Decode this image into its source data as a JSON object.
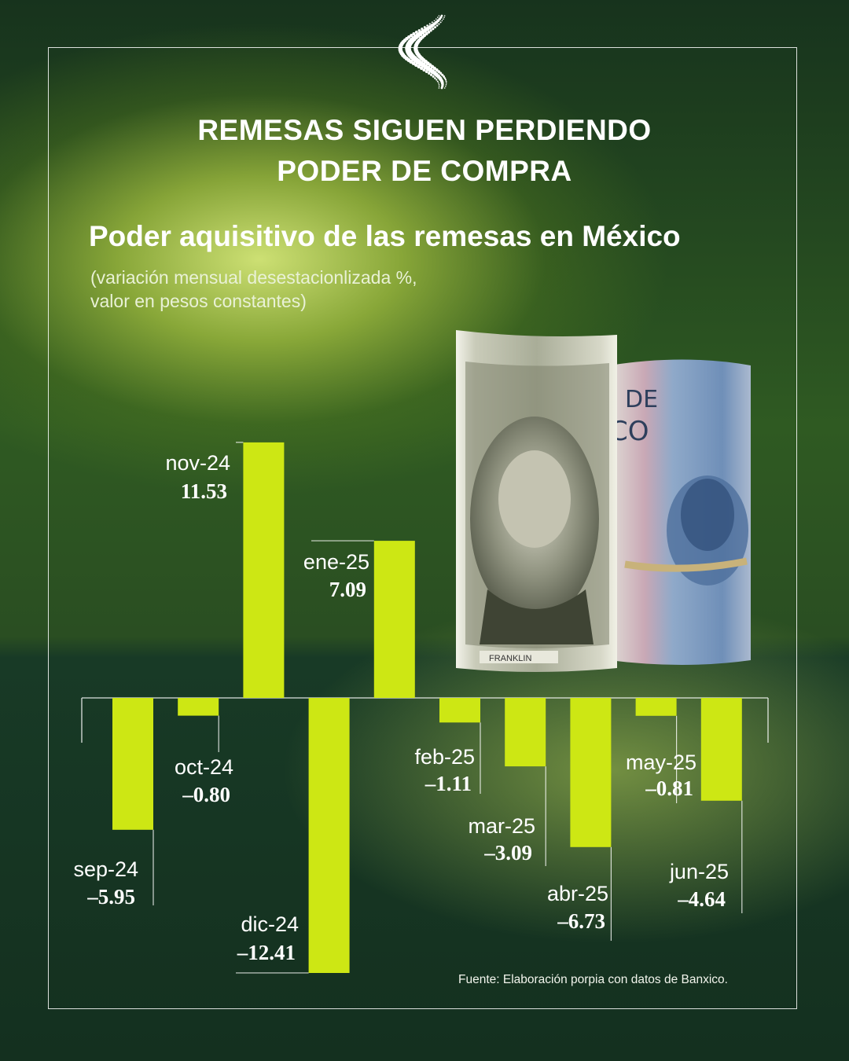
{
  "header": {
    "logo_icon": "dotted-s-logo-icon",
    "title_line1": "REMESAS SIGUEN PERDIENDO",
    "title_line2": "PODER DE COMPRA"
  },
  "illustration": {
    "icon": "rolled-banknotes-dollar-and-peso-icon",
    "dollar_text": "FRANKLIN"
  },
  "chart_data": {
    "type": "bar",
    "title": "Poder aquisitivo de las remesas en México",
    "subtitle_line1": "(variación mensual desestacionlizada %,",
    "subtitle_line2": "valor en pesos constantes)",
    "categories": [
      "sep-24",
      "oct-24",
      "nov-24",
      "dic-24",
      "ene-25",
      "feb-25",
      "mar-25",
      "abr-25",
      "may-25",
      "jun-25"
    ],
    "values": [
      -5.95,
      -0.8,
      11.53,
      -12.41,
      7.09,
      -1.11,
      -3.09,
      -6.73,
      -0.81,
      -4.64
    ],
    "value_labels": [
      "–5.95",
      "–0.80",
      "11.53",
      "–12.41",
      "7.09",
      "–1.11",
      "–3.09",
      "–6.73",
      "–0.81",
      "–4.64"
    ],
    "bar_color": "#cde714",
    "grid": false,
    "legend": "none",
    "source": "Fuente: Elaboración porpia con datos de Banxico."
  }
}
